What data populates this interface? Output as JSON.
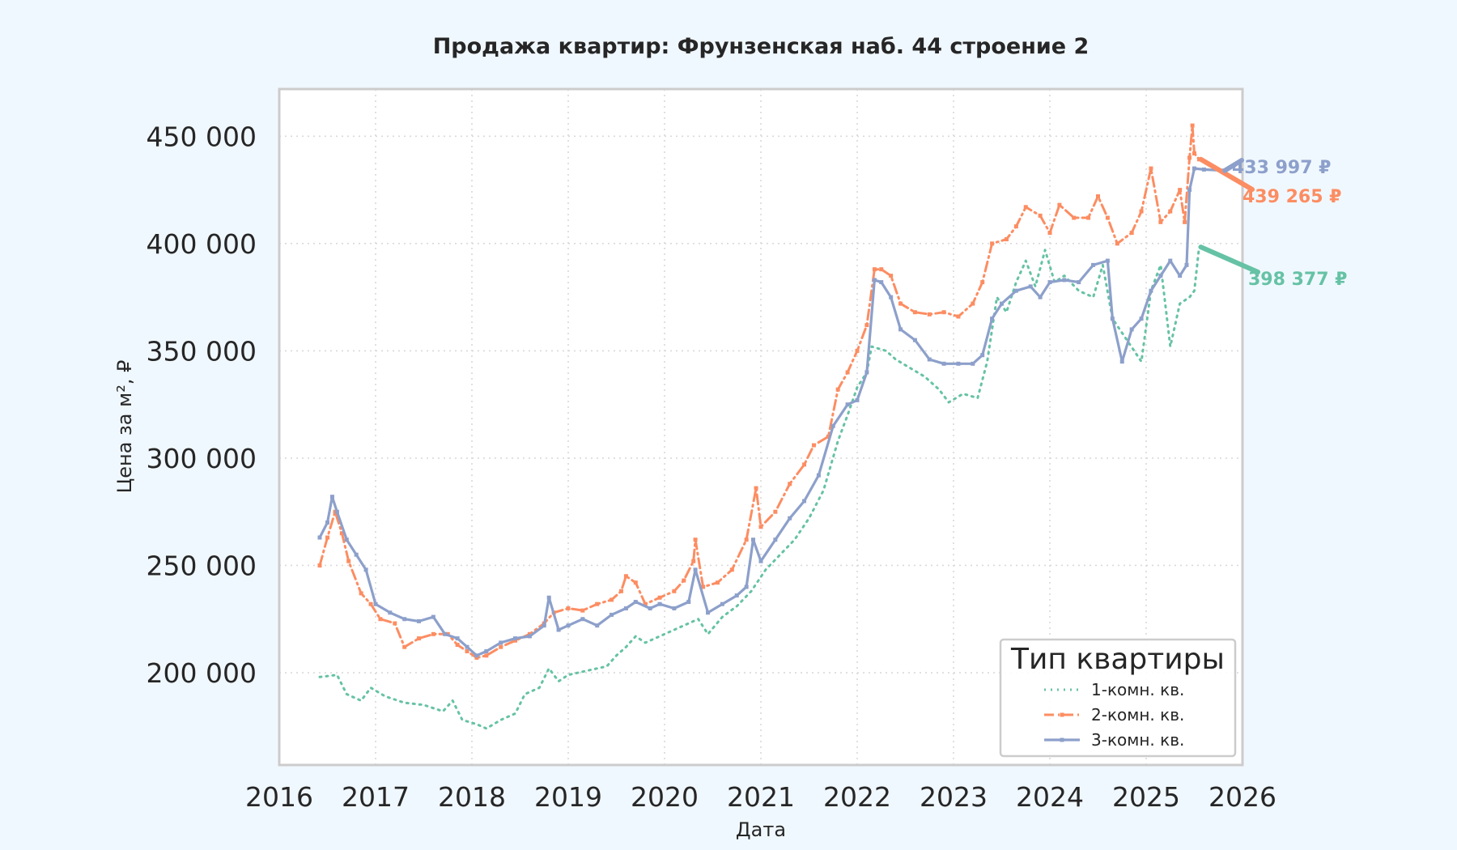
{
  "chart_data": {
    "type": "line",
    "title": "Продажа квартир: Фрунзенская наб. 44 строение 2",
    "xlabel": "Дата",
    "ylabel": "Цена за м², ₽",
    "xlim": [
      2016.0,
      2026.0
    ],
    "ylim": [
      157000,
      472000
    ],
    "x_ticks": [
      "2016",
      "2017",
      "2018",
      "2019",
      "2020",
      "2021",
      "2022",
      "2023",
      "2024",
      "2025",
      "2026"
    ],
    "y_ticks": [
      "200 000",
      "250 000",
      "300 000",
      "350 000",
      "400 000",
      "450 000"
    ],
    "grid": true,
    "legend": {
      "title": "Тип квартиры",
      "placement": "lower right"
    },
    "series": [
      {
        "name": "1-комн. кв.",
        "color": "#66c2a5",
        "style": "dotted",
        "end_label": "398 377 ₽",
        "points": [
          [
            2016.42,
            198000
          ],
          [
            2016.6,
            199000
          ],
          [
            2016.7,
            190000
          ],
          [
            2016.85,
            187000
          ],
          [
            2016.95,
            193000
          ],
          [
            2017.1,
            189000
          ],
          [
            2017.3,
            186000
          ],
          [
            2017.5,
            185000
          ],
          [
            2017.7,
            182000
          ],
          [
            2017.8,
            187000
          ],
          [
            2017.9,
            178000
          ],
          [
            2018.05,
            176000
          ],
          [
            2018.15,
            174000
          ],
          [
            2018.3,
            178000
          ],
          [
            2018.45,
            181000
          ],
          [
            2018.55,
            190000
          ],
          [
            2018.7,
            193000
          ],
          [
            2018.8,
            202000
          ],
          [
            2018.9,
            196000
          ],
          [
            2019.0,
            199000
          ],
          [
            2019.2,
            201000
          ],
          [
            2019.4,
            203000
          ],
          [
            2019.5,
            208000
          ],
          [
            2019.6,
            212000
          ],
          [
            2019.7,
            217000
          ],
          [
            2019.8,
            214000
          ],
          [
            2019.9,
            216000
          ],
          [
            2020.0,
            218000
          ],
          [
            2020.2,
            222000
          ],
          [
            2020.35,
            225000
          ],
          [
            2020.45,
            218000
          ],
          [
            2020.6,
            226000
          ],
          [
            2020.75,
            231000
          ],
          [
            2020.9,
            238000
          ],
          [
            2021.05,
            248000
          ],
          [
            2021.2,
            255000
          ],
          [
            2021.35,
            262000
          ],
          [
            2021.5,
            272000
          ],
          [
            2021.65,
            285000
          ],
          [
            2021.8,
            308000
          ],
          [
            2021.9,
            320000
          ],
          [
            2022.0,
            333000
          ],
          [
            2022.1,
            340000
          ],
          [
            2022.15,
            352000
          ],
          [
            2022.3,
            350000
          ],
          [
            2022.4,
            346000
          ],
          [
            2022.55,
            342000
          ],
          [
            2022.7,
            338000
          ],
          [
            2022.85,
            332000
          ],
          [
            2022.95,
            326000
          ],
          [
            2023.1,
            330000
          ],
          [
            2023.25,
            328000
          ],
          [
            2023.35,
            345000
          ],
          [
            2023.45,
            375000
          ],
          [
            2023.55,
            368000
          ],
          [
            2023.65,
            382000
          ],
          [
            2023.75,
            392000
          ],
          [
            2023.85,
            380000
          ],
          [
            2023.95,
            397000
          ],
          [
            2024.05,
            382000
          ],
          [
            2024.15,
            385000
          ],
          [
            2024.3,
            378000
          ],
          [
            2024.45,
            375000
          ],
          [
            2024.55,
            390000
          ],
          [
            2024.65,
            365000
          ],
          [
            2024.8,
            355000
          ],
          [
            2024.95,
            345000
          ],
          [
            2025.05,
            378000
          ],
          [
            2025.15,
            390000
          ],
          [
            2025.25,
            352000
          ],
          [
            2025.35,
            372000
          ],
          [
            2025.45,
            375000
          ],
          [
            2025.5,
            378000
          ],
          [
            2025.55,
            398377
          ]
        ]
      },
      {
        "name": "2-комн. кв.",
        "color": "#fc8d62",
        "style": "dashdot",
        "end_label": "439 265 ₽",
        "points": [
          [
            2016.42,
            250000
          ],
          [
            2016.5,
            263000
          ],
          [
            2016.58,
            275000
          ],
          [
            2016.65,
            265000
          ],
          [
            2016.72,
            252000
          ],
          [
            2016.85,
            237000
          ],
          [
            2016.95,
            232000
          ],
          [
            2017.05,
            225000
          ],
          [
            2017.2,
            223000
          ],
          [
            2017.3,
            212000
          ],
          [
            2017.45,
            216000
          ],
          [
            2017.6,
            218000
          ],
          [
            2017.75,
            218000
          ],
          [
            2017.85,
            213000
          ],
          [
            2017.95,
            210000
          ],
          [
            2018.05,
            207000
          ],
          [
            2018.15,
            208000
          ],
          [
            2018.3,
            212000
          ],
          [
            2018.45,
            215000
          ],
          [
            2018.6,
            218000
          ],
          [
            2018.75,
            223000
          ],
          [
            2018.85,
            228000
          ],
          [
            2019.0,
            230000
          ],
          [
            2019.15,
            229000
          ],
          [
            2019.3,
            232000
          ],
          [
            2019.45,
            234000
          ],
          [
            2019.55,
            238000
          ],
          [
            2019.6,
            245000
          ],
          [
            2019.7,
            242000
          ],
          [
            2019.8,
            232000
          ],
          [
            2019.95,
            235000
          ],
          [
            2020.1,
            238000
          ],
          [
            2020.2,
            243000
          ],
          [
            2020.3,
            252000
          ],
          [
            2020.32,
            262000
          ],
          [
            2020.4,
            240000
          ],
          [
            2020.55,
            242000
          ],
          [
            2020.7,
            248000
          ],
          [
            2020.85,
            262000
          ],
          [
            2020.95,
            286000
          ],
          [
            2021.0,
            268000
          ],
          [
            2021.15,
            275000
          ],
          [
            2021.3,
            288000
          ],
          [
            2021.45,
            297000
          ],
          [
            2021.55,
            306000
          ],
          [
            2021.7,
            310000
          ],
          [
            2021.8,
            332000
          ],
          [
            2021.9,
            340000
          ],
          [
            2022.0,
            350000
          ],
          [
            2022.1,
            362000
          ],
          [
            2022.18,
            388000
          ],
          [
            2022.25,
            388000
          ],
          [
            2022.35,
            385000
          ],
          [
            2022.45,
            372000
          ],
          [
            2022.6,
            368000
          ],
          [
            2022.75,
            367000
          ],
          [
            2022.9,
            368000
          ],
          [
            2023.05,
            366000
          ],
          [
            2023.2,
            372000
          ],
          [
            2023.3,
            382000
          ],
          [
            2023.4,
            400000
          ],
          [
            2023.55,
            402000
          ],
          [
            2023.65,
            408000
          ],
          [
            2023.75,
            417000
          ],
          [
            2023.9,
            413000
          ],
          [
            2024.0,
            405000
          ],
          [
            2024.1,
            418000
          ],
          [
            2024.25,
            412000
          ],
          [
            2024.4,
            412000
          ],
          [
            2024.5,
            422000
          ],
          [
            2024.6,
            412000
          ],
          [
            2024.7,
            400000
          ],
          [
            2024.85,
            405000
          ],
          [
            2024.95,
            415000
          ],
          [
            2025.05,
            435000
          ],
          [
            2025.15,
            410000
          ],
          [
            2025.25,
            415000
          ],
          [
            2025.35,
            425000
          ],
          [
            2025.4,
            410000
          ],
          [
            2025.45,
            440000
          ],
          [
            2025.48,
            455000
          ],
          [
            2025.5,
            442000
          ],
          [
            2025.55,
            439265
          ]
        ]
      },
      {
        "name": "3-комн. кв.",
        "color": "#8da0cb",
        "style": "solid",
        "end_label": "433 997 ₽",
        "points": [
          [
            2016.42,
            263000
          ],
          [
            2016.5,
            270000
          ],
          [
            2016.55,
            282000
          ],
          [
            2016.6,
            275000
          ],
          [
            2016.7,
            262000
          ],
          [
            2016.8,
            255000
          ],
          [
            2016.9,
            248000
          ],
          [
            2017.0,
            232000
          ],
          [
            2017.15,
            228000
          ],
          [
            2017.3,
            225000
          ],
          [
            2017.45,
            224000
          ],
          [
            2017.6,
            226000
          ],
          [
            2017.72,
            218000
          ],
          [
            2017.85,
            216000
          ],
          [
            2017.95,
            212000
          ],
          [
            2018.05,
            208000
          ],
          [
            2018.15,
            210000
          ],
          [
            2018.3,
            214000
          ],
          [
            2018.45,
            216000
          ],
          [
            2018.6,
            217000
          ],
          [
            2018.75,
            222000
          ],
          [
            2018.8,
            235000
          ],
          [
            2018.9,
            220000
          ],
          [
            2019.0,
            222000
          ],
          [
            2019.15,
            225000
          ],
          [
            2019.3,
            222000
          ],
          [
            2019.45,
            227000
          ],
          [
            2019.6,
            230000
          ],
          [
            2019.7,
            233000
          ],
          [
            2019.85,
            230000
          ],
          [
            2019.95,
            232000
          ],
          [
            2020.1,
            230000
          ],
          [
            2020.25,
            233000
          ],
          [
            2020.32,
            248000
          ],
          [
            2020.45,
            228000
          ],
          [
            2020.6,
            232000
          ],
          [
            2020.75,
            236000
          ],
          [
            2020.85,
            240000
          ],
          [
            2020.92,
            262000
          ],
          [
            2021.0,
            252000
          ],
          [
            2021.15,
            262000
          ],
          [
            2021.3,
            272000
          ],
          [
            2021.45,
            280000
          ],
          [
            2021.6,
            292000
          ],
          [
            2021.75,
            315000
          ],
          [
            2021.9,
            325000
          ],
          [
            2022.0,
            327000
          ],
          [
            2022.1,
            340000
          ],
          [
            2022.18,
            383000
          ],
          [
            2022.25,
            382000
          ],
          [
            2022.35,
            375000
          ],
          [
            2022.45,
            360000
          ],
          [
            2022.6,
            355000
          ],
          [
            2022.75,
            346000
          ],
          [
            2022.9,
            344000
          ],
          [
            2023.05,
            344000
          ],
          [
            2023.2,
            344000
          ],
          [
            2023.3,
            348000
          ],
          [
            2023.4,
            365000
          ],
          [
            2023.5,
            372000
          ],
          [
            2023.65,
            378000
          ],
          [
            2023.8,
            380000
          ],
          [
            2023.9,
            375000
          ],
          [
            2024.0,
            382000
          ],
          [
            2024.15,
            383000
          ],
          [
            2024.3,
            382000
          ],
          [
            2024.45,
            390000
          ],
          [
            2024.6,
            392000
          ],
          [
            2024.65,
            365000
          ],
          [
            2024.75,
            345000
          ],
          [
            2024.85,
            360000
          ],
          [
            2024.95,
            365000
          ],
          [
            2025.05,
            378000
          ],
          [
            2025.15,
            385000
          ],
          [
            2025.25,
            392000
          ],
          [
            2025.35,
            385000
          ],
          [
            2025.42,
            390000
          ],
          [
            2025.45,
            425000
          ],
          [
            2025.5,
            435000
          ],
          [
            2025.6,
            434500
          ],
          [
            2025.8,
            433997
          ]
        ]
      }
    ]
  }
}
